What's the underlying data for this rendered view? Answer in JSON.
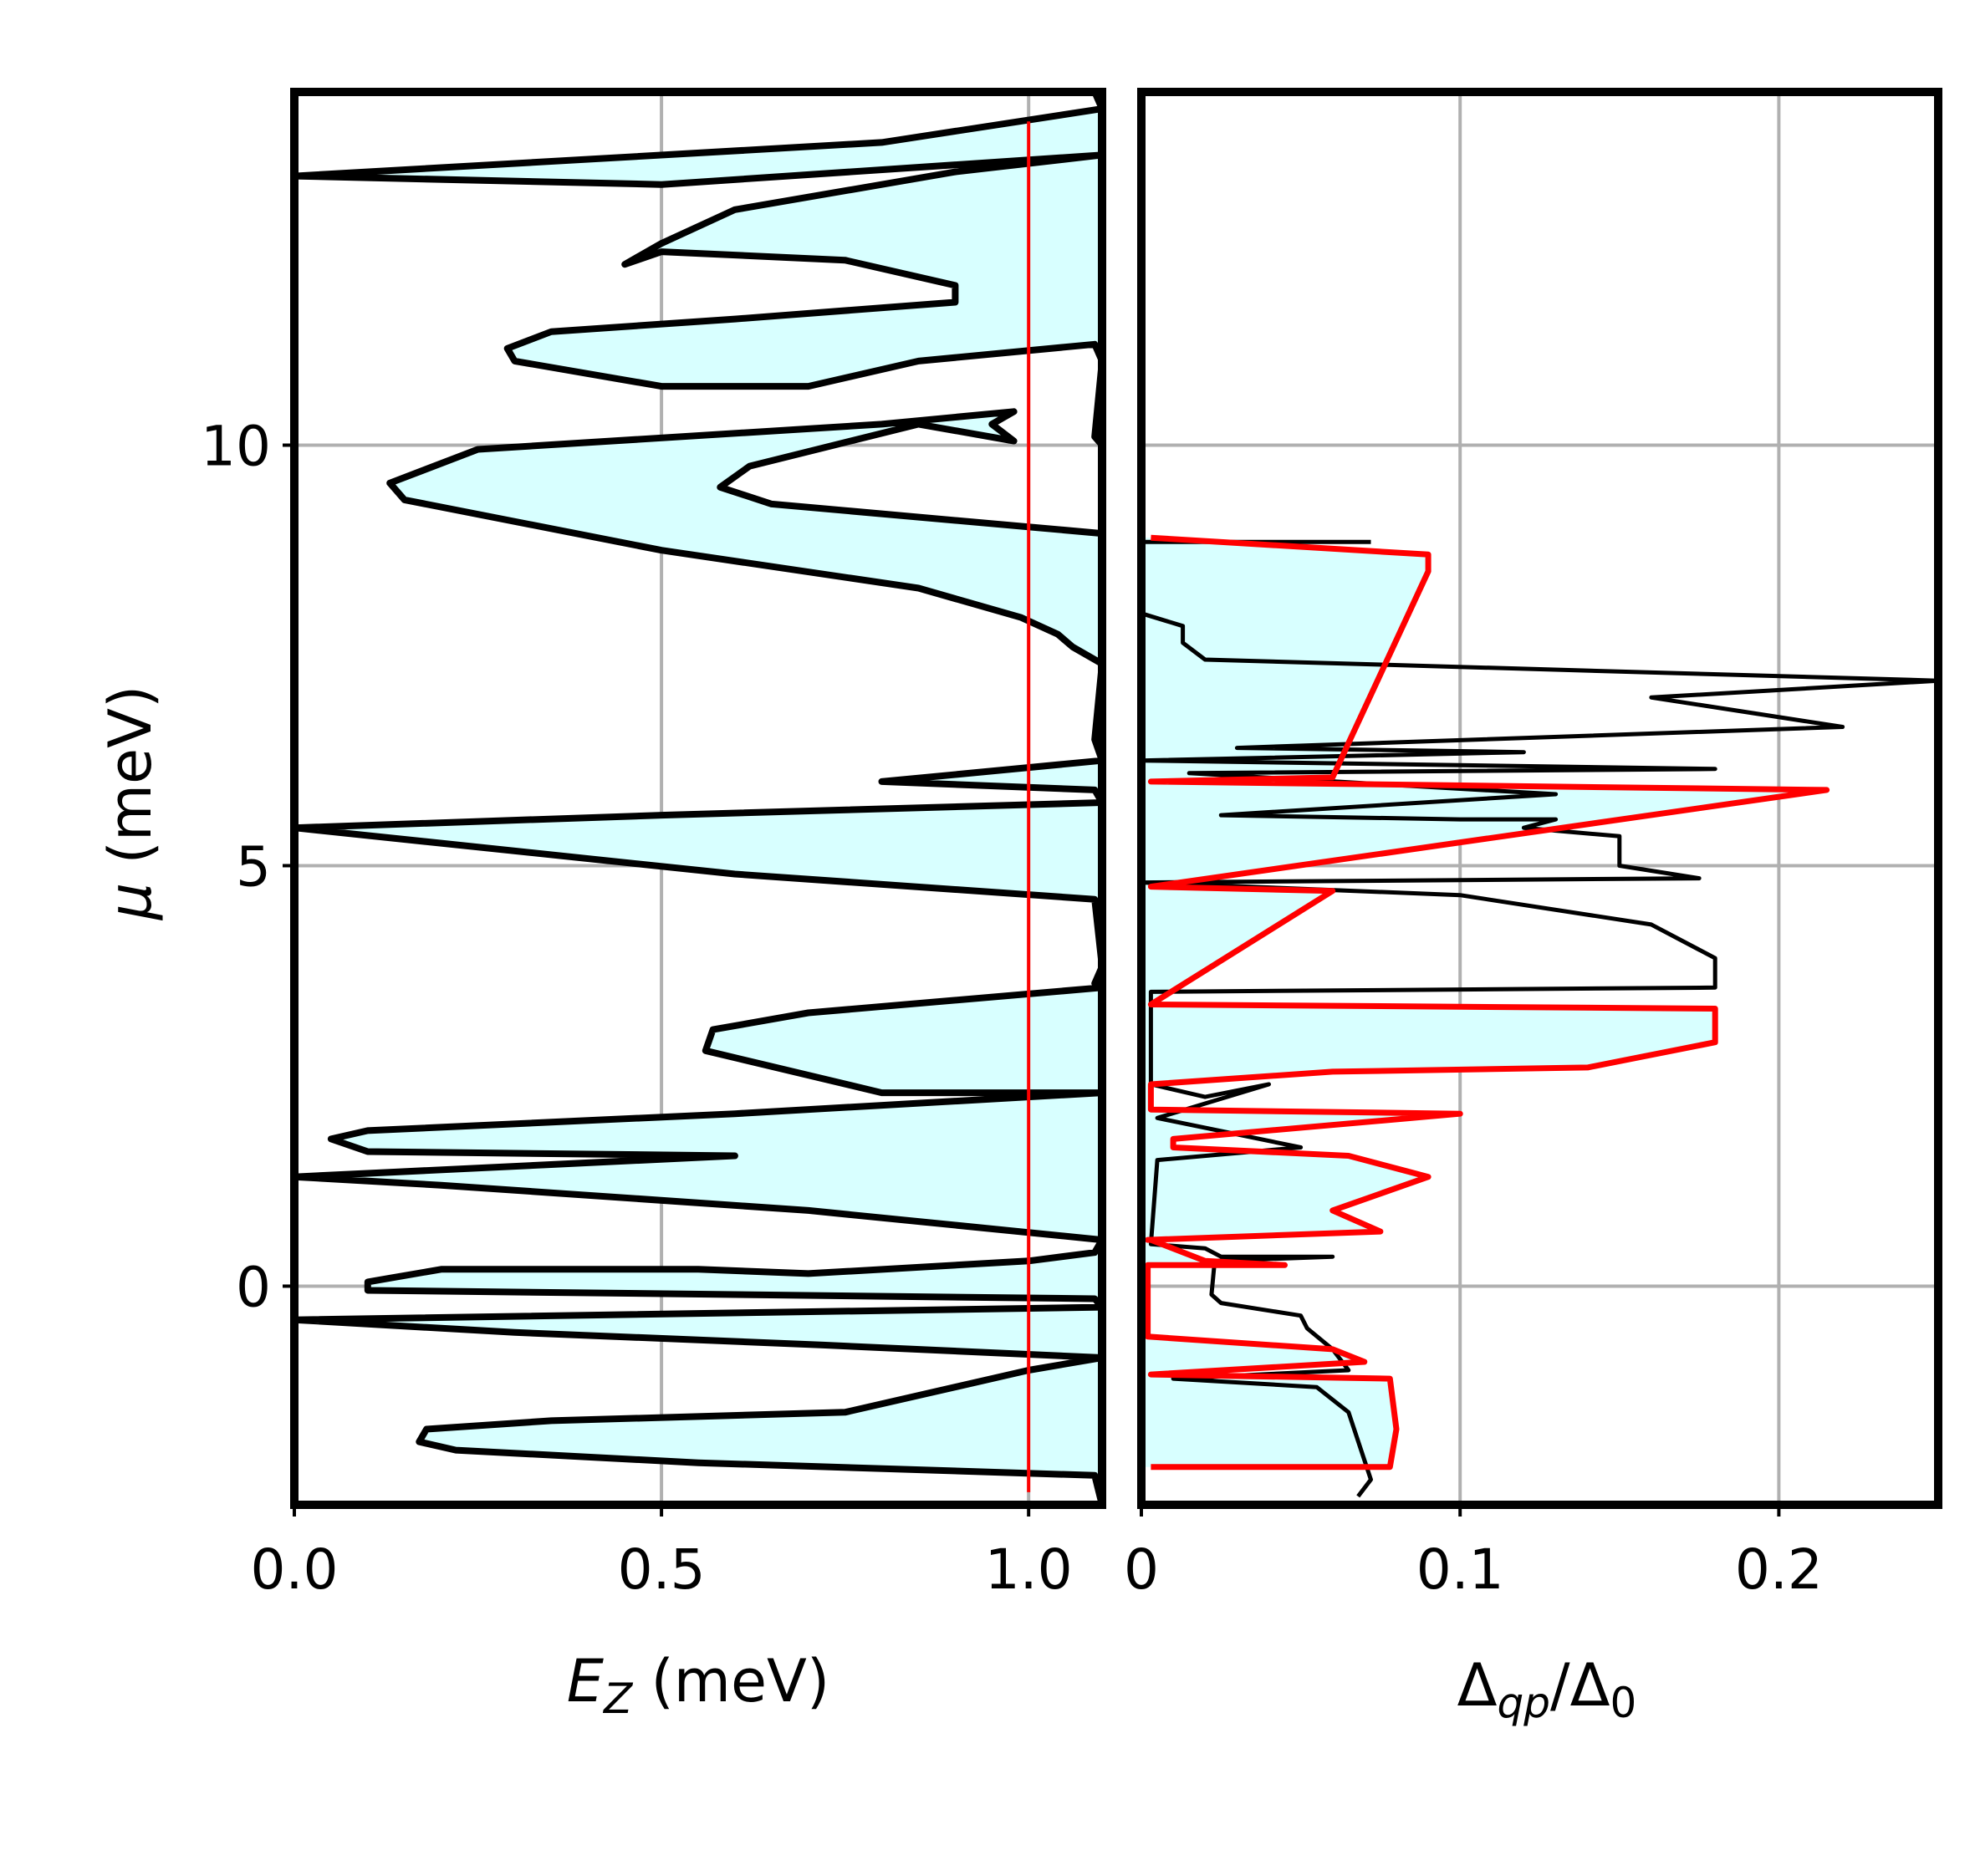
{
  "chart_data": [
    {
      "type": "area",
      "panel": "left",
      "xlabel": "E_Z (meV)",
      "xlabel_parts": {
        "var": "E",
        "sub": "Z",
        "unit": " (meV)"
      },
      "ylabel": "μ (meV)",
      "ylabel_parts": {
        "var": "μ",
        "unit": " (meV)"
      },
      "xlim": [
        0.0,
        1.1
      ],
      "ylim": [
        -2.6,
        14.2
      ],
      "xticks": [
        0.0,
        0.5,
        1.0
      ],
      "xtick_labels": [
        "0.0",
        "0.5",
        "1.0"
      ],
      "yticks": [
        0,
        5,
        10
      ],
      "ytick_labels": [
        "0",
        "5",
        "10"
      ],
      "grid": true,
      "fill_color": "#d8ffff",
      "line_color": "#000000",
      "vline": {
        "x": 1.0,
        "color": "#ff0000"
      },
      "series": [
        {
          "points": [
            [
              1.1,
              -2.6
            ],
            [
              1.09,
              -2.25
            ],
            [
              0.55,
              -2.1
            ],
            [
              0.22,
              -1.95
            ],
            [
              0.17,
              -1.85
            ],
            [
              0.18,
              -1.7
            ],
            [
              0.35,
              -1.6
            ],
            [
              0.75,
              -1.5
            ],
            [
              1.0,
              -1.0
            ],
            [
              1.1,
              -0.85
            ],
            [
              0.72,
              -0.7
            ],
            [
              0.3,
              -0.55
            ],
            [
              0.0,
              -0.4
            ],
            [
              1.1,
              -0.25
            ],
            [
              1.09,
              -0.15
            ],
            [
              0.6,
              -0.1
            ],
            [
              0.1,
              -0.05
            ],
            [
              0.1,
              0.05
            ],
            [
              0.2,
              0.2
            ],
            [
              0.55,
              0.2
            ],
            [
              0.7,
              0.15
            ],
            [
              1.0,
              0.3
            ],
            [
              1.09,
              0.4
            ],
            [
              1.1,
              0.55
            ],
            [
              0.7,
              0.9
            ],
            [
              0.2,
              1.2
            ],
            [
              0.0,
              1.3
            ],
            [
              0.6,
              1.55
            ],
            [
              0.1,
              1.6
            ],
            [
              0.05,
              1.75
            ],
            [
              0.1,
              1.85
            ],
            [
              0.6,
              2.05
            ],
            [
              1.1,
              2.3
            ],
            [
              1.09,
              2.3
            ],
            [
              0.8,
              2.3
            ],
            [
              0.56,
              2.8
            ],
            [
              0.57,
              3.05
            ],
            [
              0.7,
              3.25
            ],
            [
              1.1,
              3.55
            ],
            [
              1.09,
              3.6
            ],
            [
              1.1,
              3.8
            ],
            [
              1.09,
              4.6
            ],
            [
              0.6,
              4.9
            ],
            [
              0.0,
              5.45
            ],
            [
              0.5,
              5.6
            ],
            [
              1.1,
              5.75
            ],
            [
              1.09,
              5.9
            ],
            [
              0.8,
              6.0
            ],
            [
              1.1,
              6.25
            ],
            [
              1.09,
              6.5
            ],
            [
              1.1,
              7.4
            ],
            [
              1.06,
              7.6
            ],
            [
              1.04,
              7.75
            ],
            [
              0.99,
              7.95
            ],
            [
              0.85,
              8.3
            ],
            [
              0.5,
              8.75
            ],
            [
              0.15,
              9.35
            ],
            [
              0.13,
              9.55
            ],
            [
              0.25,
              9.95
            ],
            [
              0.8,
              10.25
            ],
            [
              0.98,
              10.4
            ],
            [
              0.95,
              10.25
            ],
            [
              0.98,
              10.05
            ],
            [
              0.85,
              10.25
            ],
            [
              0.62,
              9.75
            ],
            [
              0.58,
              9.5
            ],
            [
              0.65,
              9.3
            ],
            [
              1.1,
              8.95
            ],
            [
              1.1,
              10.0
            ],
            [
              1.09,
              10.1
            ],
            [
              1.1,
              11.0
            ],
            [
              1.09,
              11.2
            ],
            [
              0.85,
              11.0
            ],
            [
              0.7,
              10.7
            ],
            [
              0.5,
              10.7
            ],
            [
              0.3,
              11.0
            ],
            [
              0.29,
              11.15
            ],
            [
              0.35,
              11.35
            ],
            [
              0.6,
              11.5
            ],
            [
              0.9,
              11.7
            ],
            [
              0.9,
              11.9
            ],
            [
              0.75,
              12.2
            ],
            [
              0.5,
              12.3
            ],
            [
              0.45,
              12.15
            ],
            [
              0.5,
              12.4
            ],
            [
              0.6,
              12.8
            ],
            [
              0.9,
              13.25
            ],
            [
              1.1,
              13.45
            ],
            [
              0.5,
              13.1
            ],
            [
              0.0,
              13.2
            ],
            [
              0.8,
              13.6
            ],
            [
              1.1,
              14.0
            ],
            [
              1.09,
              14.2
            ]
          ]
        }
      ]
    },
    {
      "type": "area",
      "panel": "right",
      "xlabel": "Δ_qp/Δ_0",
      "xlabel_parts": {
        "pre": "Δ",
        "sub1": "qp",
        "mid": "/Δ",
        "sub2": "0"
      },
      "xlim": [
        0.0,
        0.25
      ],
      "ylim": [
        -2.6,
        14.2
      ],
      "xticks": [
        0.0,
        0.1,
        0.2
      ],
      "xtick_labels": [
        "0",
        "0.1",
        "0.2"
      ],
      "grid": true,
      "fill_color": "#d8ffff",
      "series": [
        {
          "color": "#000000",
          "points": [
            [
              0.068,
              -2.5
            ],
            [
              0.072,
              -2.3
            ],
            [
              0.065,
              -1.5
            ],
            [
              0.055,
              -1.2
            ],
            [
              0.01,
              -1.1
            ],
            [
              0.065,
              -1.0
            ],
            [
              0.06,
              -0.75
            ],
            [
              0.052,
              -0.5
            ],
            [
              0.05,
              -0.35
            ],
            [
              0.025,
              -0.2
            ],
            [
              0.022,
              -0.1
            ],
            [
              0.023,
              0.3
            ],
            [
              0.06,
              0.35
            ],
            [
              0.025,
              0.35
            ],
            [
              0.02,
              0.45
            ],
            [
              0.003,
              0.5
            ],
            [
              0.005,
              1.5
            ],
            [
              0.05,
              1.65
            ],
            [
              0.005,
              2.0
            ],
            [
              0.04,
              2.4
            ],
            [
              0.02,
              2.25
            ],
            [
              0.003,
              2.4
            ],
            [
              0.003,
              3.5
            ],
            [
              0.18,
              3.55
            ],
            [
              0.18,
              3.9
            ],
            [
              0.16,
              4.3
            ],
            [
              0.1,
              4.65
            ],
            [
              0.0,
              4.8
            ],
            [
              0.175,
              4.85
            ],
            [
              0.15,
              5.0
            ],
            [
              0.15,
              5.35
            ],
            [
              0.12,
              5.45
            ],
            [
              0.13,
              5.55
            ],
            [
              0.1,
              5.55
            ],
            [
              0.025,
              5.6
            ],
            [
              0.13,
              5.85
            ],
            [
              0.015,
              6.1
            ],
            [
              0.18,
              6.15
            ],
            [
              0.0,
              6.25
            ],
            [
              0.12,
              6.35
            ],
            [
              0.03,
              6.4
            ],
            [
              0.22,
              6.65
            ],
            [
              0.16,
              7.0
            ],
            [
              0.25,
              7.2
            ],
            [
              0.02,
              7.45
            ],
            [
              0.013,
              7.65
            ],
            [
              0.013,
              7.85
            ],
            [
              0.0,
              8.0
            ],
            [
              0.0,
              8.85
            ],
            [
              0.072,
              8.85
            ]
          ]
        },
        {
          "color": "#ff0000",
          "points": [
            [
              0.003,
              -2.15
            ],
            [
              0.078,
              -2.15
            ],
            [
              0.08,
              -1.7
            ],
            [
              0.078,
              -1.1
            ],
            [
              0.003,
              -1.05
            ],
            [
              0.07,
              -0.9
            ],
            [
              0.06,
              -0.75
            ],
            [
              0.002,
              -0.6
            ],
            [
              0.002,
              0.25
            ],
            [
              0.045,
              0.25
            ],
            [
              0.02,
              0.3
            ],
            [
              0.003,
              0.55
            ],
            [
              0.002,
              0.55
            ],
            [
              0.075,
              0.65
            ],
            [
              0.06,
              0.9
            ],
            [
              0.09,
              1.3
            ],
            [
              0.065,
              1.55
            ],
            [
              0.01,
              1.65
            ],
            [
              0.01,
              1.75
            ],
            [
              0.1,
              2.05
            ],
            [
              0.003,
              2.1
            ],
            [
              0.003,
              2.4
            ],
            [
              0.06,
              2.55
            ],
            [
              0.14,
              2.6
            ],
            [
              0.18,
              2.9
            ],
            [
              0.18,
              3.3
            ],
            [
              0.003,
              3.35
            ],
            [
              0.06,
              4.7
            ],
            [
              0.003,
              4.75
            ],
            [
              0.215,
              5.9
            ],
            [
              0.003,
              6.0
            ],
            [
              0.06,
              6.05
            ],
            [
              0.09,
              8.5
            ],
            [
              0.09,
              8.7
            ],
            [
              0.003,
              8.9
            ]
          ]
        }
      ]
    }
  ]
}
